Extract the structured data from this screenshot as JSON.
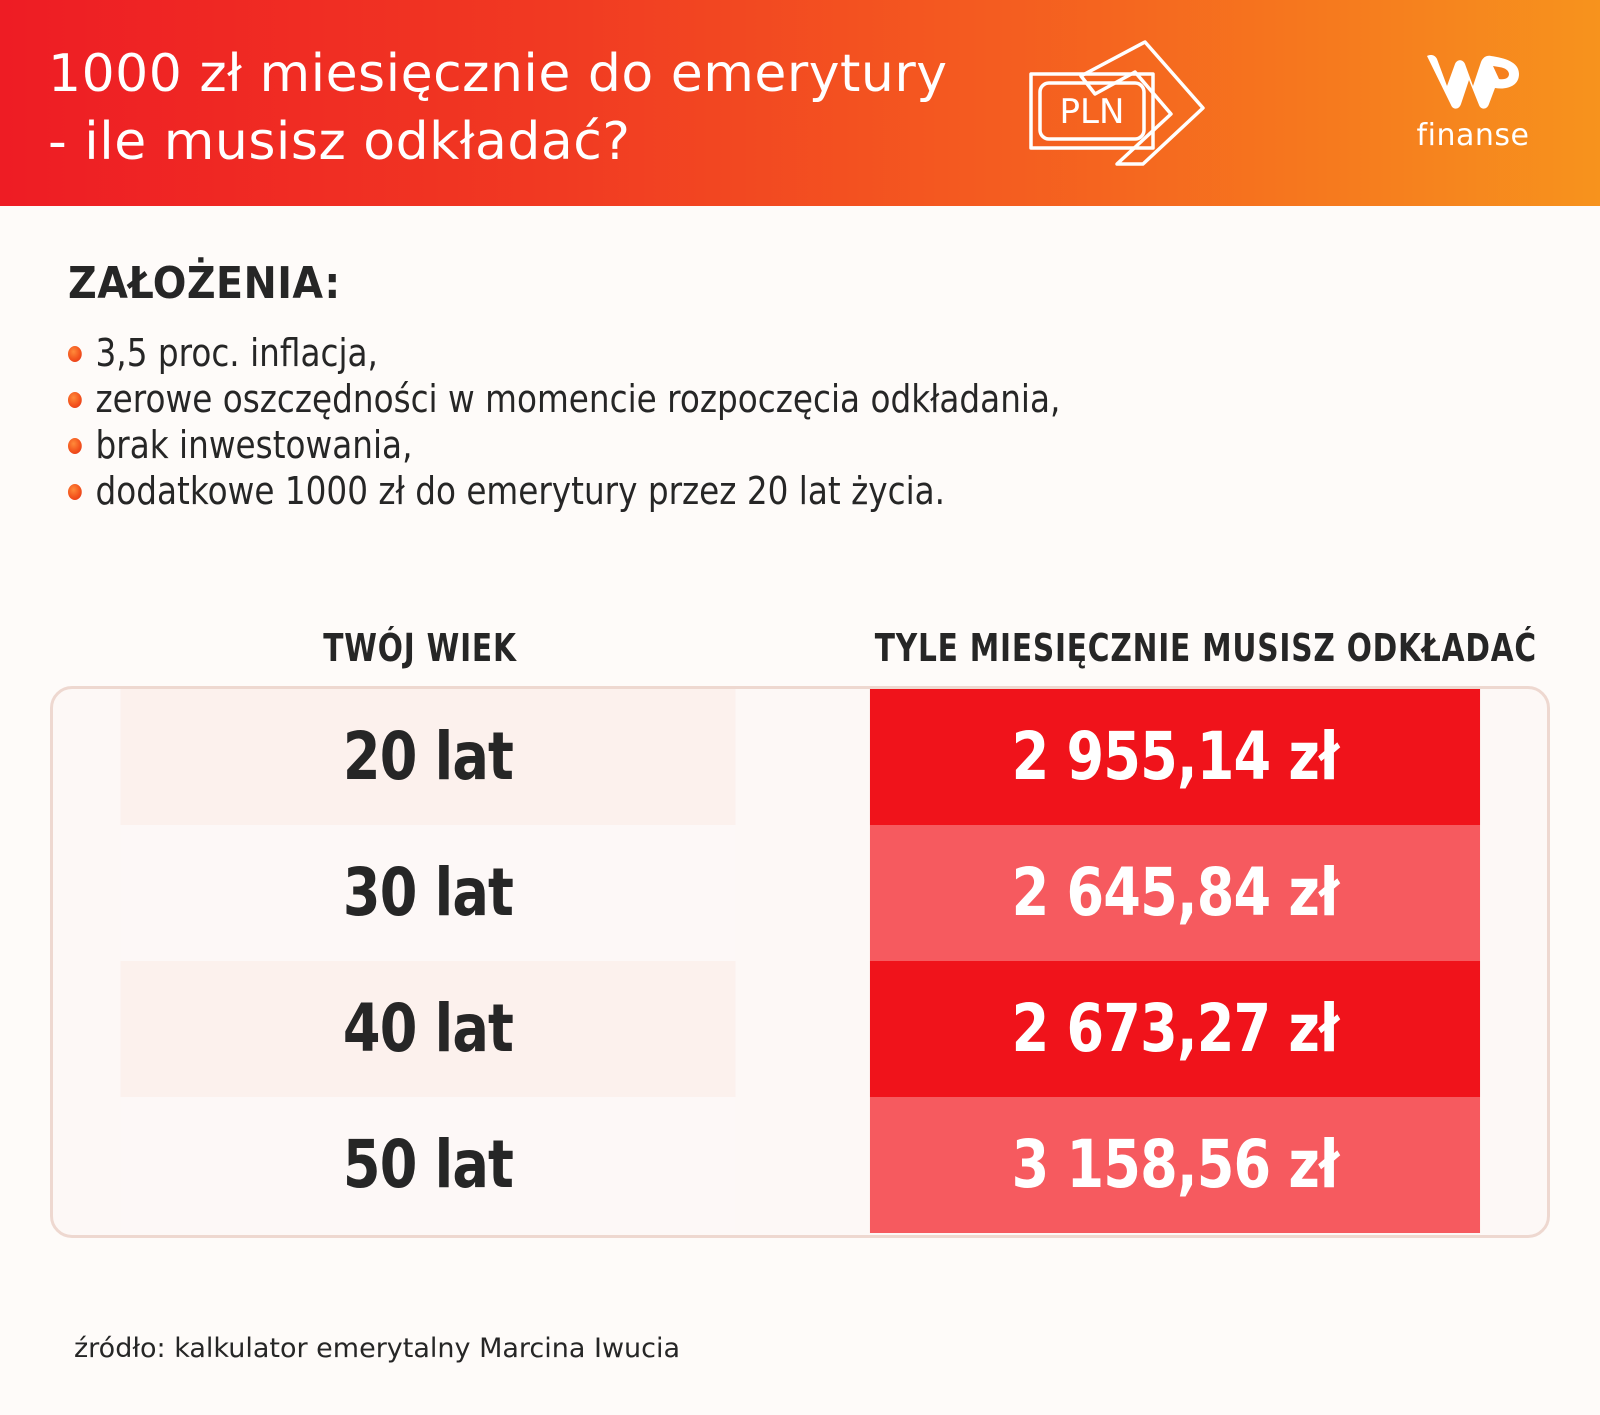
{
  "header": {
    "title_line1": "1000 zł miesięcznie do emerytury",
    "title_line2": "- ile musisz odkładać?",
    "badge_text": "PLN",
    "logo_text": "finanse",
    "colors": {
      "gradient_start": "#ee1c24",
      "gradient_end": "#f7931d"
    }
  },
  "assumptions": {
    "heading": "ZAŁOŻENIA:",
    "items": [
      "3,5 proc. inflacja,",
      "zerowe oszczędności w momencie rozpoczęcia odkładania,",
      "brak inwestowania,",
      "dodatkowe 1000 zł do emerytury przez 20 lat życia."
    ]
  },
  "chart_data": {
    "type": "table",
    "columns": [
      "TWÓJ WIEK",
      "TYLE MIESIĘCZNIE MUSISZ ODKŁADAĆ"
    ],
    "rows": [
      {
        "age": "20 lat",
        "amount": "2 955,14 zł",
        "value": 2955.14
      },
      {
        "age": "30 lat",
        "amount": "2 645,84 zł",
        "value": 2645.84
      },
      {
        "age": "40 lat",
        "amount": "2 673,27 zł",
        "value": 2673.27
      },
      {
        "age": "50 lat",
        "amount": "3 158,56 zł",
        "value": 3158.56
      }
    ],
    "colors": {
      "amount_dark": "#f0131b",
      "amount_light": "#f65a5f"
    }
  },
  "footer": {
    "source": "źródło: kalkulator emerytalny Marcina Iwucia"
  }
}
